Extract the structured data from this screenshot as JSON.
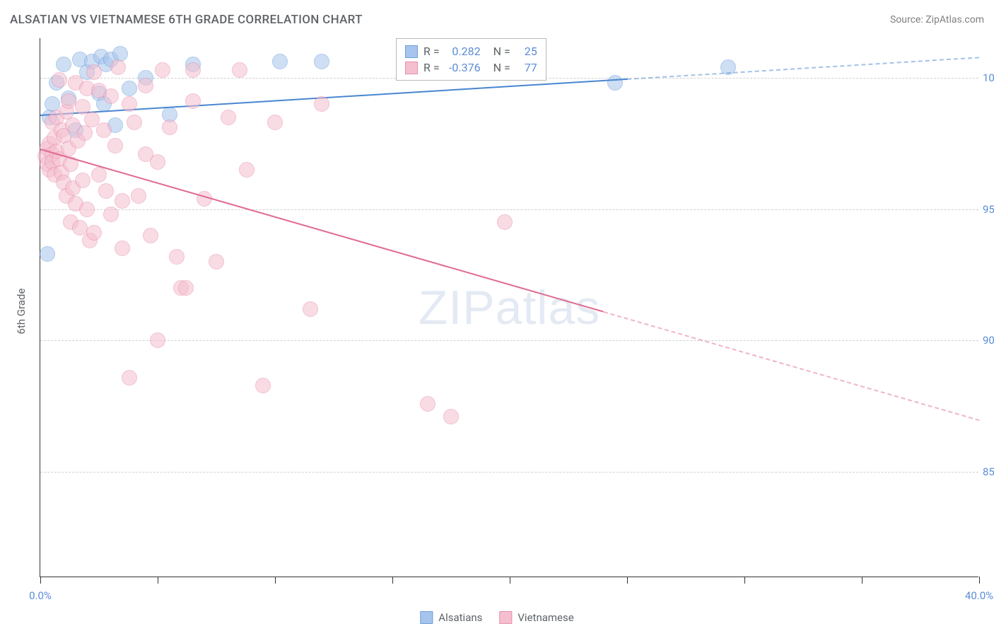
{
  "title": "ALSATIAN VS VIETNAMESE 6TH GRADE CORRELATION CHART",
  "source": "Source: ZipAtlas.com",
  "y_axis_label": "6th Grade",
  "watermark_zip": "ZIP",
  "watermark_atlas": "atlas",
  "chart": {
    "type": "scatter",
    "background_color": "#ffffff",
    "grid_color": "#d0d0d0",
    "axis_color": "#333333",
    "xlim": [
      0,
      40
    ],
    "ylim": [
      81,
      101.5
    ],
    "x_ticks": [
      0,
      5,
      10,
      15,
      20,
      25,
      30,
      35,
      40
    ],
    "x_tick_labels": {
      "0": "0.0%",
      "40": "40.0%"
    },
    "y_gridlines": [
      85,
      90,
      95,
      100
    ],
    "y_tick_labels": {
      "85": "85.0%",
      "90": "90.0%",
      "95": "95.0%",
      "100": "100.0%"
    },
    "tick_label_color": "#5b8dd6",
    "tick_label_fontsize": 15,
    "point_radius": 11,
    "point_opacity": 0.55,
    "point_stroke_width": 1.3,
    "series": [
      {
        "name": "Alsatians",
        "fill_color": "#a7c5ec",
        "stroke_color": "#6d9eda",
        "line_color": "#4a86d0",
        "R": "0.282",
        "N": "25",
        "regression": {
          "x1": 0,
          "y1": 98.6,
          "x2": 40,
          "y2": 100.8,
          "solid_until_x": 25
        },
        "points": [
          [
            0.3,
            93.3
          ],
          [
            0.4,
            98.5
          ],
          [
            0.5,
            99.0
          ],
          [
            0.7,
            99.8
          ],
          [
            1.0,
            100.5
          ],
          [
            1.2,
            99.2
          ],
          [
            1.5,
            98.0
          ],
          [
            1.7,
            100.7
          ],
          [
            2.0,
            100.2
          ],
          [
            2.2,
            100.6
          ],
          [
            2.5,
            99.4
          ],
          [
            2.6,
            100.8
          ],
          [
            2.7,
            99.0
          ],
          [
            2.8,
            100.5
          ],
          [
            3.0,
            100.7
          ],
          [
            3.2,
            98.2
          ],
          [
            3.4,
            100.9
          ],
          [
            3.8,
            99.6
          ],
          [
            4.5,
            100.0
          ],
          [
            5.5,
            98.6
          ],
          [
            6.5,
            100.5
          ],
          [
            10.2,
            100.6
          ],
          [
            12.0,
            100.6
          ],
          [
            24.5,
            99.8
          ],
          [
            29.3,
            100.4
          ]
        ]
      },
      {
        "name": "Vietnamese",
        "fill_color": "#f5bfcf",
        "stroke_color": "#e78fad",
        "line_color": "#e06b92",
        "R": "-0.376",
        "N": "77",
        "regression": {
          "x1": 0,
          "y1": 97.3,
          "x2": 40,
          "y2": 87.0,
          "solid_until_x": 24
        },
        "points": [
          [
            0.2,
            97.0
          ],
          [
            0.3,
            97.3
          ],
          [
            0.3,
            96.7
          ],
          [
            0.4,
            97.5
          ],
          [
            0.4,
            96.5
          ],
          [
            0.5,
            98.3
          ],
          [
            0.5,
            97.1
          ],
          [
            0.5,
            96.8
          ],
          [
            0.6,
            97.7
          ],
          [
            0.6,
            96.3
          ],
          [
            0.7,
            98.5
          ],
          [
            0.7,
            97.2
          ],
          [
            0.8,
            99.9
          ],
          [
            0.8,
            96.9
          ],
          [
            0.9,
            98.0
          ],
          [
            0.9,
            96.4
          ],
          [
            1.0,
            97.8
          ],
          [
            1.0,
            96.0
          ],
          [
            1.1,
            98.7
          ],
          [
            1.1,
            95.5
          ],
          [
            1.2,
            99.1
          ],
          [
            1.2,
            97.3
          ],
          [
            1.3,
            96.7
          ],
          [
            1.3,
            94.5
          ],
          [
            1.4,
            98.2
          ],
          [
            1.4,
            95.8
          ],
          [
            1.5,
            99.8
          ],
          [
            1.5,
            95.2
          ],
          [
            1.6,
            97.6
          ],
          [
            1.7,
            94.3
          ],
          [
            1.8,
            98.9
          ],
          [
            1.8,
            96.1
          ],
          [
            1.9,
            97.9
          ],
          [
            2.0,
            99.6
          ],
          [
            2.0,
            95.0
          ],
          [
            2.1,
            93.8
          ],
          [
            2.2,
            98.4
          ],
          [
            2.3,
            100.2
          ],
          [
            2.3,
            94.1
          ],
          [
            2.5,
            99.5
          ],
          [
            2.5,
            96.3
          ],
          [
            2.7,
            98.0
          ],
          [
            2.8,
            95.7
          ],
          [
            3.0,
            99.3
          ],
          [
            3.0,
            94.8
          ],
          [
            3.2,
            97.4
          ],
          [
            3.3,
            100.4
          ],
          [
            3.5,
            95.3
          ],
          [
            3.5,
            93.5
          ],
          [
            3.8,
            99.0
          ],
          [
            3.8,
            88.6
          ],
          [
            4.0,
            98.3
          ],
          [
            4.2,
            95.5
          ],
          [
            4.5,
            99.7
          ],
          [
            4.5,
            97.1
          ],
          [
            4.7,
            94.0
          ],
          [
            5.0,
            96.8
          ],
          [
            5.0,
            90.0
          ],
          [
            5.2,
            100.3
          ],
          [
            5.5,
            98.1
          ],
          [
            5.8,
            93.2
          ],
          [
            6.0,
            92.0
          ],
          [
            6.2,
            92.0
          ],
          [
            6.5,
            99.1
          ],
          [
            6.5,
            100.3
          ],
          [
            7.0,
            95.4
          ],
          [
            7.5,
            93.0
          ],
          [
            8.0,
            98.5
          ],
          [
            8.5,
            100.3
          ],
          [
            8.8,
            96.5
          ],
          [
            9.5,
            88.3
          ],
          [
            10.0,
            98.3
          ],
          [
            11.5,
            91.2
          ],
          [
            12.0,
            99.0
          ],
          [
            16.5,
            87.6
          ],
          [
            17.5,
            87.1
          ],
          [
            19.8,
            94.5
          ]
        ]
      }
    ]
  },
  "stats_legend": {
    "r_label": "R =",
    "n_label": "N ="
  },
  "bottom_legend": {
    "items": [
      "Alsatians",
      "Vietnamese"
    ]
  }
}
